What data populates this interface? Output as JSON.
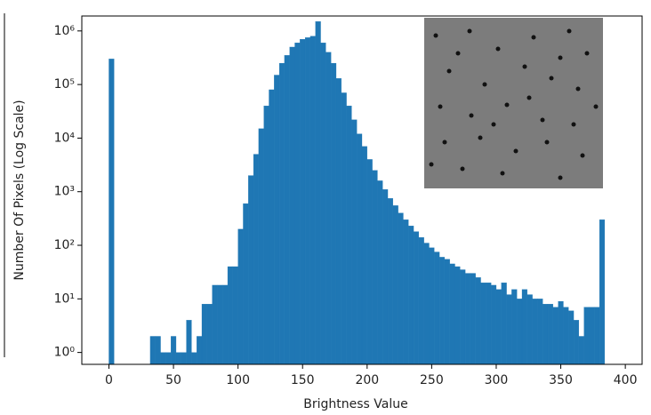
{
  "chart_data": {
    "type": "histogram",
    "xlabel": "Brightness Value",
    "ylabel": "Number Of Pixels (Log Scale)",
    "color": "#1f77b4",
    "log_y": true,
    "bins": [
      0,
      4,
      8,
      12,
      16,
      20,
      24,
      28,
      32,
      36,
      40,
      44,
      48,
      52,
      56,
      60,
      64,
      68,
      72,
      76,
      80,
      84,
      88,
      92,
      96,
      100,
      104,
      108,
      112,
      116,
      120,
      124,
      128,
      132,
      136,
      140,
      144,
      148,
      152,
      156,
      160,
      164,
      168,
      172,
      176,
      180,
      184,
      188,
      192,
      196,
      200,
      204,
      208,
      212,
      216,
      220,
      224,
      228,
      232,
      236,
      240,
      244,
      248,
      252,
      256,
      260,
      264,
      268,
      272,
      276,
      280,
      284,
      288,
      292,
      296,
      300,
      304,
      308,
      312,
      316,
      320,
      324,
      328,
      332,
      336,
      340,
      344,
      348,
      352,
      356,
      360,
      364,
      368,
      372,
      376,
      380,
      384
    ],
    "counts": [
      300000,
      0,
      0,
      0,
      0,
      0,
      0,
      0,
      2,
      2,
      1,
      1,
      2,
      1,
      1,
      4,
      1,
      2,
      8,
      8,
      18,
      18,
      18,
      40,
      40,
      200,
      600,
      2000,
      5000,
      15000,
      40000,
      80000,
      150000,
      250000,
      350000,
      500000,
      600000,
      700000,
      750000,
      800000,
      1500000,
      600000,
      400000,
      250000,
      130000,
      70000,
      40000,
      22000,
      12000,
      7000,
      4000,
      2500,
      1600,
      1100,
      750,
      550,
      400,
      300,
      230,
      180,
      140,
      110,
      90,
      75,
      60,
      55,
      45,
      40,
      35,
      30,
      30,
      25,
      20,
      20,
      18,
      15,
      20,
      12,
      15,
      10,
      15,
      12,
      10,
      10,
      8,
      8,
      7,
      9,
      7,
      6,
      4,
      2,
      7,
      7,
      7,
      300
    ],
    "xlim": [
      -21,
      413
    ],
    "xticks": [
      0,
      50,
      100,
      150,
      200,
      250,
      300,
      350,
      400
    ],
    "ylim": [
      0.6,
      1900000
    ],
    "yticks": [
      {
        "value": 1,
        "label": "10⁰"
      },
      {
        "value": 10,
        "label": "10¹"
      },
      {
        "value": 100,
        "label": "10²"
      },
      {
        "value": 1000,
        "label": "10³"
      },
      {
        "value": 10000,
        "label": "10⁴"
      },
      {
        "value": 100000,
        "label": "10⁵"
      },
      {
        "value": 1000000,
        "label": "10⁶"
      }
    ]
  }
}
